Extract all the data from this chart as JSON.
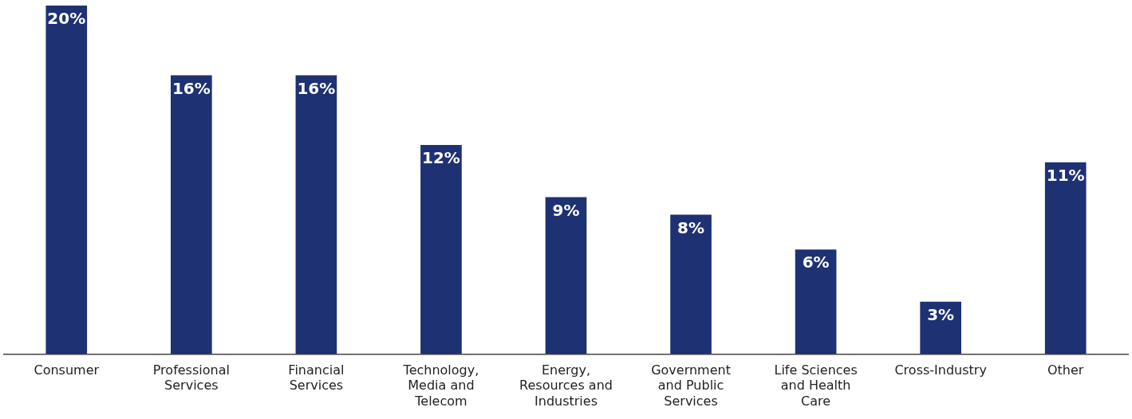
{
  "chart_data": {
    "type": "bar",
    "categories": [
      "Consumer",
      "Professional Services",
      "Financial Services",
      "Technology, Media and Telecom",
      "Energy, Resources and Industries",
      "Government and Public Services",
      "Life Sciences and Health Care",
      "Cross-Industry",
      "Other"
    ],
    "values": [
      20,
      16,
      16,
      12,
      9,
      8,
      6,
      3,
      11
    ],
    "value_labels": [
      "20%",
      "16%",
      "16%",
      "12%",
      "9%",
      "8%",
      "6%",
      "3%",
      "11%"
    ],
    "color": "#1e3173",
    "grid": false,
    "legend": false
  }
}
